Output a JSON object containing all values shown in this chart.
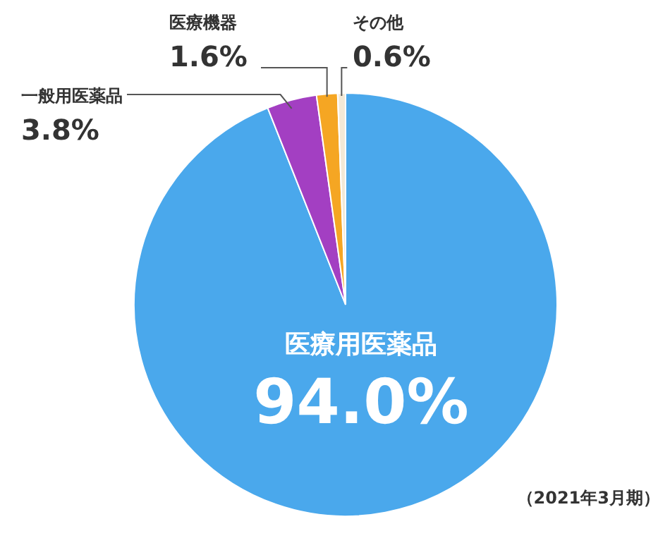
{
  "chart_data": {
    "type": "pie",
    "categories": [
      "医療用医薬品",
      "一般用医薬品",
      "医療機器",
      "その他"
    ],
    "values": [
      94.0,
      3.8,
      1.6,
      0.6
    ],
    "colors": [
      "#4aa8ec",
      "#a33fc2",
      "#f5a623",
      "#f3e9d7"
    ],
    "value_labels": [
      "94.0%",
      "3.8%",
      "1.6%",
      "0.6%"
    ],
    "annotations": [
      "（2021年3月期）"
    ]
  }
}
